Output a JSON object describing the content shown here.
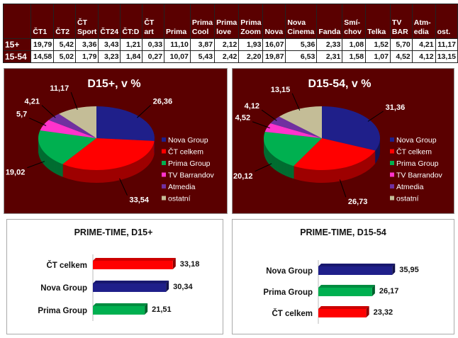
{
  "table": {
    "headers": [
      "",
      "ČT1",
      "ČT2",
      "ČT Sport",
      "ČT24",
      "ČT:D",
      "ČT art",
      "Prima",
      "Prima Cool",
      "Prima love",
      "Prima Zoom",
      "Nova",
      "Nova Cinema",
      "Fanda",
      "Smí-chov",
      "Telka",
      "TV BAR",
      "Atm-edia",
      "ost."
    ],
    "rows": [
      [
        "15+",
        "19,79",
        "5,42",
        "3,36",
        "3,43",
        "1,21",
        "0,33",
        "11,10",
        "3,87",
        "2,12",
        "1,93",
        "16,07",
        "5,36",
        "2,33",
        "1,08",
        "1,52",
        "5,70",
        "4,21",
        "11,17"
      ],
      [
        "15-54",
        "14,58",
        "5,02",
        "1,79",
        "3,23",
        "1,84",
        "0,27",
        "10,07",
        "5,43",
        "2,42",
        "2,20",
        "19,87",
        "6,53",
        "2,31",
        "1,58",
        "1,07",
        "4,52",
        "4,12",
        "13,15"
      ]
    ]
  },
  "chart_data": [
    {
      "type": "pie",
      "title": "D15+, v %",
      "categories": [
        "Nova Group",
        "ČT celkem",
        "Prima Group",
        "TV Barrandov",
        "Atmedia",
        "ostatní"
      ],
      "values": [
        26.36,
        33.54,
        19.02,
        5.7,
        4.21,
        11.17
      ],
      "labels": [
        "26,36",
        "33,54",
        "19,02",
        "5,7",
        "4,21",
        "11,17"
      ],
      "colors": [
        "#1f1f8a",
        "#ff0000",
        "#00b050",
        "#ff33cc",
        "#7030a0",
        "#c4bd97"
      ],
      "legend": "right"
    },
    {
      "type": "pie",
      "title": "D15-54, v %",
      "categories": [
        "Nova Group",
        "ČT celkem",
        "Prima Group",
        "TV Barrandov",
        "Atmedia",
        "ostatní"
      ],
      "values": [
        31.36,
        26.73,
        20.12,
        4.52,
        4.12,
        13.15
      ],
      "labels": [
        "31,36",
        "26,73",
        "20,12",
        "4,52",
        "4,12",
        "13,15"
      ],
      "colors": [
        "#1f1f8a",
        "#ff0000",
        "#00b050",
        "#ff33cc",
        "#7030a0",
        "#c4bd97"
      ],
      "legend": "right"
    },
    {
      "type": "bar",
      "title": "PRIME-TIME, D15+",
      "categories": [
        "ČT celkem",
        "Nova Group",
        "Prima Group"
      ],
      "values": [
        33.18,
        30.34,
        21.51
      ],
      "labels": [
        "33,18",
        "30,34",
        "21,51"
      ],
      "colors": [
        "#ff0000",
        "#1f1f8a",
        "#00b050"
      ]
    },
    {
      "type": "bar",
      "title": "PRIME-TIME, D15-54",
      "categories": [
        "Nova Group",
        "Prima Group",
        "ČT celkem"
      ],
      "values": [
        35.95,
        26.17,
        23.32
      ],
      "labels": [
        "35,95",
        "26,17",
        "23,32"
      ],
      "colors": [
        "#1f1f8a",
        "#00b050",
        "#ff0000"
      ]
    }
  ]
}
